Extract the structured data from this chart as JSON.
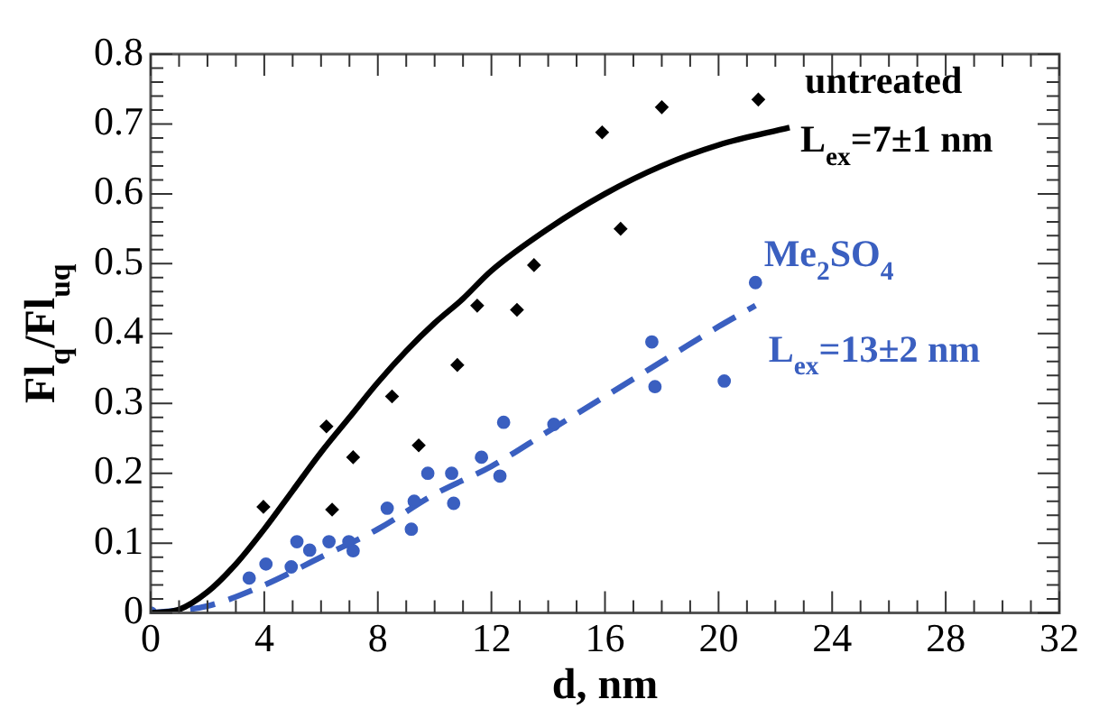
{
  "chart_data": {
    "type": "scatter",
    "xlabel": "d, nm",
    "ylabel": "Fl$_{q}$/Fl$_{uq}$",
    "xlim": [
      0,
      32
    ],
    "xticks": [
      0,
      4,
      8,
      12,
      16,
      20,
      24,
      28,
      32
    ],
    "ylim": [
      0,
      0.8
    ],
    "yticks": [
      0,
      0.1,
      0.2,
      0.3,
      0.4,
      0.5,
      0.6,
      0.7,
      0.8
    ],
    "grid": false,
    "legend": false,
    "series": [
      {
        "marker": "diamond",
        "color": "#000000",
        "x": [
          3.97,
          6.19,
          6.39,
          7.13,
          8.5,
          9.44,
          10.8,
          11.5,
          12.9,
          13.5,
          15.9,
          16.55,
          18.0,
          21.4
        ],
        "values": [
          0.152,
          0.267,
          0.148,
          0.223,
          0.31,
          0.24,
          0.355,
          0.44,
          0.434,
          0.498,
          0.688,
          0.55,
          0.724,
          0.735
        ]
      },
      {
        "type": "line",
        "marker": "none",
        "line_style": "solid",
        "color": "#000000",
        "x": [
          0,
          1,
          2,
          3,
          4,
          5,
          6,
          7,
          8,
          9,
          10,
          11,
          12,
          14,
          16,
          18,
          20,
          22.5
        ],
        "values": [
          0,
          0.005,
          0.03,
          0.07,
          0.12,
          0.175,
          0.23,
          0.28,
          0.33,
          0.375,
          0.415,
          0.45,
          0.49,
          0.55,
          0.6,
          0.64,
          0.67,
          0.695
        ]
      },
      {
        "marker": "circle",
        "color": "#3a5fc0",
        "x": [
          0,
          3.47,
          4.06,
          4.95,
          5.15,
          5.6,
          6.28,
          6.98,
          7.13,
          8.33,
          9.18,
          9.28,
          9.76,
          10.6,
          10.67,
          11.65,
          12.3,
          12.43,
          14.2,
          17.65,
          17.76,
          20.2,
          21.3
        ],
        "values": [
          0,
          0.05,
          0.07,
          0.066,
          0.102,
          0.09,
          0.102,
          0.102,
          0.089,
          0.15,
          0.12,
          0.16,
          0.2,
          0.2,
          0.157,
          0.223,
          0.196,
          0.273,
          0.27,
          0.388,
          0.324,
          0.332,
          0.473
        ]
      },
      {
        "type": "line",
        "marker": "none",
        "line_style": "dashed",
        "color": "#3a5fc0",
        "x": [
          0,
          2,
          4,
          6,
          8,
          10,
          12,
          14,
          16,
          18,
          20,
          21.3
        ],
        "values": [
          0,
          0.01,
          0.04,
          0.08,
          0.12,
          0.17,
          0.21,
          0.26,
          0.31,
          0.36,
          0.41,
          0.44
        ]
      }
    ],
    "annotations": [
      "untreated",
      "L$_{ex}$=7±1 nm",
      "Me$_{2}$SO$_{4}$",
      "L$_{ex}$=13±2 nm"
    ]
  }
}
